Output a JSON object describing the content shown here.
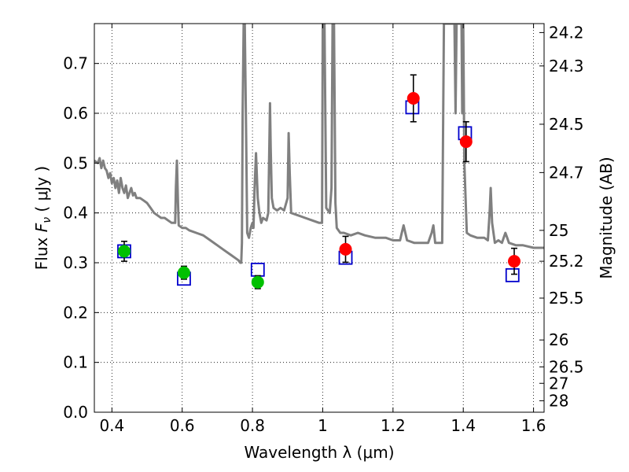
{
  "chart_data": {
    "type": "scatter",
    "xlabel": "Wavelength  λ (μm)",
    "ylabel_left": {
      "prefix": "Flux  ",
      "symbol": "F",
      "subscript": "ν",
      "suffix": "  ( μJy )"
    },
    "ylabel_right": "Magnitude (AB)",
    "xlim": [
      0.35,
      1.63
    ],
    "ylim": [
      0.0,
      0.78
    ],
    "grid": true,
    "x_ticks": [
      0.4,
      0.6,
      0.8,
      1.0,
      1.2,
      1.4,
      1.6
    ],
    "x_tick_labels": [
      "0.4",
      "0.6",
      "0.8",
      "1",
      "1.2",
      "1.4",
      "1.6"
    ],
    "y_ticks": [
      0.0,
      0.1,
      0.2,
      0.3,
      0.4,
      0.5,
      0.6,
      0.7
    ],
    "y_tick_labels": [
      "0.0",
      "0.1",
      "0.2",
      "0.3",
      "0.4",
      "0.5",
      "0.6",
      "0.7"
    ],
    "right_ticks": [
      {
        "label": "24.2",
        "flux": 0.762
      },
      {
        "label": "24.3",
        "flux": 0.695
      },
      {
        "label": "24.5",
        "flux": 0.578
      },
      {
        "label": "24.7",
        "flux": 0.481
      },
      {
        "label": "25",
        "flux": 0.365
      },
      {
        "label": "25.2",
        "flux": 0.303
      },
      {
        "label": "25.5",
        "flux": 0.229
      },
      {
        "label": "26",
        "flux": 0.145
      },
      {
        "label": "26.5",
        "flux": 0.091
      },
      {
        "label": "27",
        "flux": 0.058
      },
      {
        "label": "28",
        "flux": 0.023
      }
    ],
    "series": [
      {
        "style": "line",
        "color": "#808080",
        "points": [
          [
            0.35,
            0.505
          ],
          [
            0.36,
            0.5
          ],
          [
            0.365,
            0.51
          ],
          [
            0.37,
            0.49
          ],
          [
            0.375,
            0.505
          ],
          [
            0.38,
            0.49
          ],
          [
            0.385,
            0.485
          ],
          [
            0.39,
            0.47
          ],
          [
            0.395,
            0.48
          ],
          [
            0.4,
            0.46
          ],
          [
            0.405,
            0.47
          ],
          [
            0.41,
            0.45
          ],
          [
            0.415,
            0.465
          ],
          [
            0.42,
            0.44
          ],
          [
            0.425,
            0.47
          ],
          [
            0.43,
            0.45
          ],
          [
            0.435,
            0.44
          ],
          [
            0.44,
            0.455
          ],
          [
            0.445,
            0.43
          ],
          [
            0.45,
            0.44
          ],
          [
            0.455,
            0.45
          ],
          [
            0.46,
            0.435
          ],
          [
            0.465,
            0.44
          ],
          [
            0.47,
            0.43
          ],
          [
            0.48,
            0.43
          ],
          [
            0.49,
            0.425
          ],
          [
            0.5,
            0.42
          ],
          [
            0.51,
            0.41
          ],
          [
            0.52,
            0.4
          ],
          [
            0.53,
            0.395
          ],
          [
            0.54,
            0.39
          ],
          [
            0.55,
            0.39
          ],
          [
            0.56,
            0.385
          ],
          [
            0.57,
            0.38
          ],
          [
            0.58,
            0.38
          ],
          [
            0.582,
            0.45
          ],
          [
            0.585,
            0.505
          ],
          [
            0.588,
            0.42
          ],
          [
            0.59,
            0.375
          ],
          [
            0.6,
            0.37
          ],
          [
            0.61,
            0.37
          ],
          [
            0.62,
            0.365
          ],
          [
            0.64,
            0.36
          ],
          [
            0.66,
            0.355
          ],
          [
            0.68,
            0.345
          ],
          [
            0.7,
            0.335
          ],
          [
            0.72,
            0.325
          ],
          [
            0.74,
            0.315
          ],
          [
            0.75,
            0.31
          ],
          [
            0.76,
            0.305
          ],
          [
            0.765,
            0.3
          ],
          [
            0.768,
            0.3
          ],
          [
            0.77,
            0.34
          ],
          [
            0.772,
            0.6
          ],
          [
            0.775,
            0.78
          ],
          [
            0.778,
            0.78
          ],
          [
            0.782,
            0.55
          ],
          [
            0.785,
            0.36
          ],
          [
            0.79,
            0.35
          ],
          [
            0.795,
            0.37
          ],
          [
            0.8,
            0.38
          ],
          [
            0.803,
            0.37
          ],
          [
            0.806,
            0.45
          ],
          [
            0.81,
            0.52
          ],
          [
            0.815,
            0.43
          ],
          [
            0.82,
            0.4
          ],
          [
            0.825,
            0.38
          ],
          [
            0.83,
            0.39
          ],
          [
            0.84,
            0.385
          ],
          [
            0.845,
            0.4
          ],
          [
            0.848,
            0.53
          ],
          [
            0.85,
            0.62
          ],
          [
            0.852,
            0.53
          ],
          [
            0.855,
            0.43
          ],
          [
            0.86,
            0.41
          ],
          [
            0.87,
            0.405
          ],
          [
            0.88,
            0.41
          ],
          [
            0.89,
            0.405
          ],
          [
            0.9,
            0.43
          ],
          [
            0.903,
            0.56
          ],
          [
            0.906,
            0.48
          ],
          [
            0.91,
            0.4
          ],
          [
            0.93,
            0.395
          ],
          [
            0.95,
            0.39
          ],
          [
            0.97,
            0.385
          ],
          [
            0.99,
            0.38
          ],
          [
            0.998,
            0.38
          ],
          [
            1.0,
            0.78
          ],
          [
            1.005,
            0.78
          ],
          [
            1.01,
            0.41
          ],
          [
            1.02,
            0.4
          ],
          [
            1.025,
            0.45
          ],
          [
            1.028,
            0.78
          ],
          [
            1.032,
            0.78
          ],
          [
            1.036,
            0.42
          ],
          [
            1.04,
            0.37
          ],
          [
            1.05,
            0.36
          ],
          [
            1.06,
            0.36
          ],
          [
            1.08,
            0.355
          ],
          [
            1.1,
            0.36
          ],
          [
            1.12,
            0.355
          ],
          [
            1.15,
            0.35
          ],
          [
            1.18,
            0.35
          ],
          [
            1.2,
            0.345
          ],
          [
            1.22,
            0.345
          ],
          [
            1.225,
            0.36
          ],
          [
            1.23,
            0.375
          ],
          [
            1.235,
            0.36
          ],
          [
            1.24,
            0.345
          ],
          [
            1.26,
            0.34
          ],
          [
            1.28,
            0.34
          ],
          [
            1.3,
            0.34
          ],
          [
            1.31,
            0.36
          ],
          [
            1.315,
            0.375
          ],
          [
            1.32,
            0.34
          ],
          [
            1.34,
            0.34
          ],
          [
            1.345,
            0.78
          ],
          [
            1.35,
            0.78
          ],
          [
            1.375,
            0.78
          ],
          [
            1.378,
            0.6
          ],
          [
            1.381,
            0.78
          ],
          [
            1.395,
            0.78
          ],
          [
            1.397,
            0.6
          ],
          [
            1.4,
            0.78
          ],
          [
            1.403,
            0.5
          ],
          [
            1.41,
            0.36
          ],
          [
            1.42,
            0.355
          ],
          [
            1.44,
            0.35
          ],
          [
            1.46,
            0.35
          ],
          [
            1.47,
            0.345
          ],
          [
            1.475,
            0.4
          ],
          [
            1.478,
            0.45
          ],
          [
            1.482,
            0.38
          ],
          [
            1.49,
            0.34
          ],
          [
            1.5,
            0.345
          ],
          [
            1.51,
            0.34
          ],
          [
            1.515,
            0.35
          ],
          [
            1.52,
            0.36
          ],
          [
            1.525,
            0.35
          ],
          [
            1.53,
            0.34
          ],
          [
            1.55,
            0.335
          ],
          [
            1.57,
            0.335
          ],
          [
            1.6,
            0.33
          ],
          [
            1.63,
            0.33
          ]
        ]
      },
      {
        "style": "open-square",
        "color": "#0000cc",
        "points": [
          [
            0.435,
            0.323
          ],
          [
            0.605,
            0.268
          ],
          [
            0.815,
            0.286
          ],
          [
            1.065,
            0.31
          ],
          [
            1.255,
            0.612
          ],
          [
            1.405,
            0.56
          ],
          [
            1.54,
            0.275
          ]
        ]
      },
      {
        "style": "filled-circle",
        "color": "#00c000",
        "points": [
          [
            0.435,
            0.323,
            0.02
          ],
          [
            0.605,
            0.28,
            0.013
          ],
          [
            0.815,
            0.261,
            0.013
          ]
        ]
      },
      {
        "style": "filled-circle",
        "color": "#ff0000",
        "points": [
          [
            1.065,
            0.327,
            0.026
          ],
          [
            1.258,
            0.63,
            0.047
          ],
          [
            1.408,
            0.543,
            0.04
          ],
          [
            1.545,
            0.303,
            0.026
          ]
        ]
      }
    ]
  }
}
